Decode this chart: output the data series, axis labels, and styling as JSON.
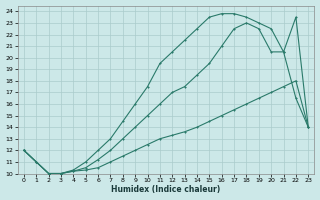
{
  "xlabel": "Humidex (Indice chaleur)",
  "bg_color": "#cce8e8",
  "grid_color": "#aacccc",
  "line_color": "#2a7a6a",
  "xlim": [
    -0.5,
    23.5
  ],
  "ylim": [
    10,
    24.5
  ],
  "xticks": [
    0,
    1,
    2,
    3,
    4,
    5,
    6,
    7,
    8,
    9,
    10,
    11,
    12,
    13,
    14,
    15,
    16,
    17,
    18,
    19,
    20,
    21,
    22,
    23
  ],
  "yticks": [
    10,
    11,
    12,
    13,
    14,
    15,
    16,
    17,
    18,
    19,
    20,
    21,
    22,
    23,
    24
  ],
  "curve_top_x": [
    0,
    1,
    2,
    3,
    4,
    5,
    6,
    7,
    8,
    9,
    10,
    11,
    12,
    13,
    14,
    15,
    16,
    17,
    18,
    19,
    20,
    21,
    22,
    23
  ],
  "curve_top_y": [
    12,
    11,
    10,
    10,
    10.3,
    11,
    12,
    13,
    14.5,
    16,
    17.5,
    19.5,
    20.5,
    21.5,
    22.5,
    23.5,
    23.8,
    23.8,
    23.5,
    23,
    22.5,
    20.5,
    23.5,
    14
  ],
  "curve_mid_x": [
    0,
    1,
    2,
    3,
    4,
    5,
    6,
    7,
    8,
    9,
    10,
    11,
    12,
    13,
    14,
    15,
    16,
    17,
    18,
    19,
    20,
    21,
    22,
    23
  ],
  "curve_mid_y": [
    12,
    11,
    10,
    10,
    10.2,
    10.5,
    11.2,
    12,
    13,
    14,
    15,
    16,
    17,
    17.5,
    18.5,
    19.5,
    21,
    22.5,
    23,
    22.5,
    20.5,
    20.5,
    16.5,
    14
  ],
  "curve_bot_x": [
    0,
    1,
    2,
    3,
    4,
    5,
    6,
    7,
    8,
    9,
    10,
    11,
    12,
    13,
    14,
    15,
    16,
    17,
    18,
    19,
    20,
    21,
    22,
    23
  ],
  "curve_bot_y": [
    12,
    11,
    10,
    10,
    10.2,
    10.3,
    10.5,
    11,
    11.5,
    12,
    12.5,
    13,
    13.3,
    13.6,
    14,
    14.5,
    15,
    15.5,
    16,
    16.5,
    17,
    17.5,
    18,
    14
  ]
}
